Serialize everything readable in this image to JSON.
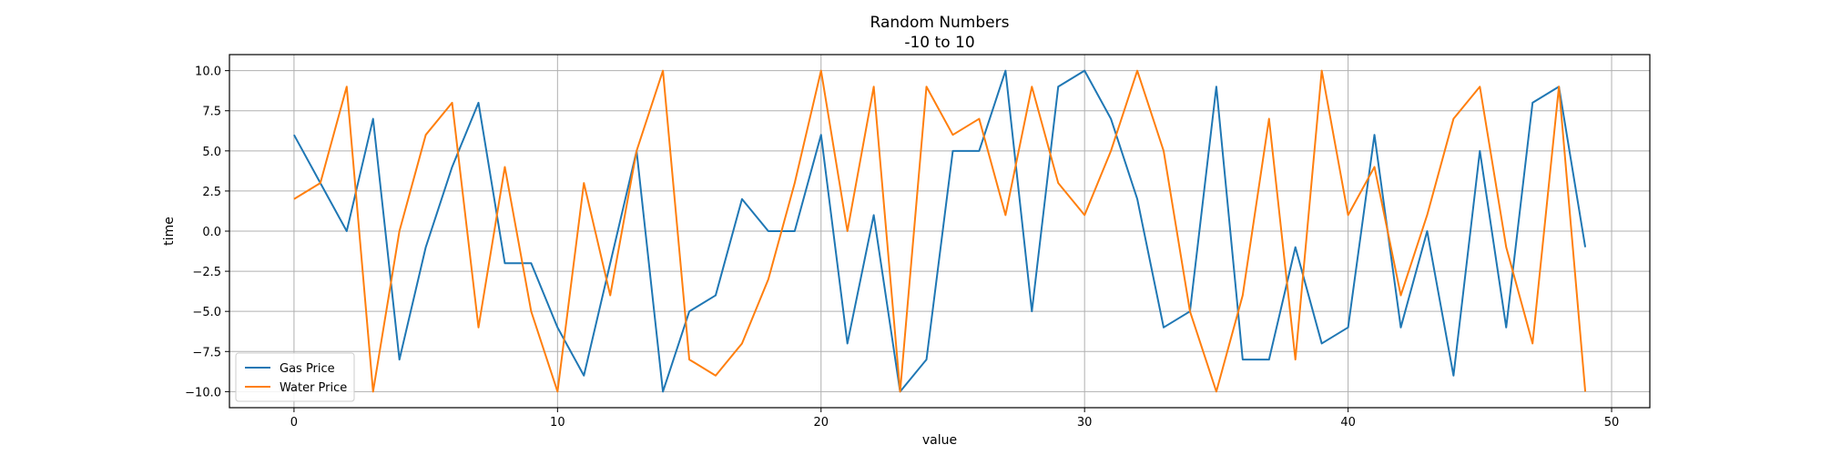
{
  "chart_data": {
    "type": "line",
    "title": "Random Numbers",
    "subtitle": "-10 to 10",
    "xlabel": "value",
    "ylabel": "time",
    "xlim": [
      -2.45,
      51.45
    ],
    "ylim": [
      -11,
      11
    ],
    "xticks": [
      0,
      10,
      20,
      30,
      40,
      50
    ],
    "xtick_labels": [
      "0",
      "10",
      "20",
      "30",
      "40",
      "50"
    ],
    "yticks": [
      -10,
      -7.5,
      -5,
      -2.5,
      0,
      2.5,
      5,
      7.5,
      10
    ],
    "ytick_labels": [
      "−10.0",
      "−7.5",
      "−5.0",
      "−2.5",
      "0.0",
      "2.5",
      "5.0",
      "7.5",
      "10.0"
    ],
    "grid": true,
    "legend_position": "lower-left",
    "x": [
      0,
      1,
      2,
      3,
      4,
      5,
      6,
      7,
      8,
      9,
      10,
      11,
      12,
      13,
      14,
      15,
      16,
      17,
      18,
      19,
      20,
      21,
      22,
      23,
      24,
      25,
      26,
      27,
      28,
      29,
      30,
      31,
      32,
      33,
      34,
      35,
      36,
      37,
      38,
      39,
      40,
      41,
      42,
      43,
      44,
      45,
      46,
      47,
      48,
      49
    ],
    "series": [
      {
        "name": "Gas Price",
        "color": "#1f77b4",
        "values": [
          6,
          3,
          0,
          7,
          -8,
          -1,
          4,
          8,
          -2,
          -2,
          -6,
          -9,
          -2,
          5,
          -10,
          -5,
          -4,
          2,
          0,
          0,
          6,
          -7,
          1,
          -10,
          -8,
          5,
          5,
          10,
          -5,
          9,
          10,
          7,
          2,
          -6,
          -5,
          9,
          -8,
          -8,
          -1,
          -7,
          -6,
          6,
          -6,
          0,
          -9,
          5,
          -6,
          8,
          9,
          -1
        ]
      },
      {
        "name": "Water Price",
        "color": "#ff7f0e",
        "values": [
          2,
          3,
          9,
          -10,
          0,
          6,
          8,
          -6,
          4,
          -5,
          -10,
          3,
          -4,
          5,
          10,
          -8,
          -9,
          -7,
          -3,
          3,
          10,
          0,
          9,
          -10,
          9,
          6,
          7,
          1,
          9,
          3,
          1,
          5,
          10,
          5,
          -5,
          -10,
          -4,
          7,
          -8,
          10,
          1,
          4,
          -4,
          1,
          7,
          9,
          -1,
          -7,
          9,
          -10
        ]
      }
    ]
  }
}
